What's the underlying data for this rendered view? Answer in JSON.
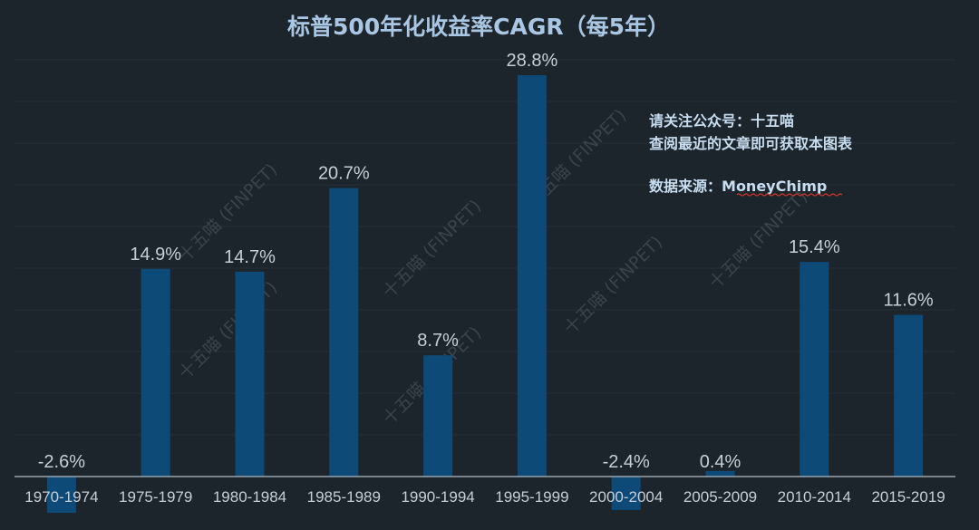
{
  "chart_data": {
    "type": "bar",
    "title": "标普500年化收益率CAGR（每5年）",
    "categories": [
      "1970-1974",
      "1975-1979",
      "1980-1984",
      "1985-1989",
      "1990-1994",
      "1995-1999",
      "2000-2004",
      "2005-2009",
      "2010-2014",
      "2015-2019"
    ],
    "values": [
      -2.6,
      14.9,
      14.7,
      20.7,
      8.7,
      28.8,
      -2.4,
      0.4,
      15.4,
      11.6
    ],
    "data_labels": [
      "-2.6%",
      "14.9%",
      "14.7%",
      "20.7%",
      "8.7%",
      "28.8%",
      "-2.4%",
      "0.4%",
      "15.4%",
      "11.6%"
    ],
    "xlabel": "",
    "ylabel": "",
    "ylim": [
      -3.5,
      29.5
    ],
    "grid": true,
    "legend": "none"
  },
  "annotation": {
    "line1": "请关注公众号：十五喵",
    "line2": "查阅最近的文章即可获取本图表",
    "source_prefix": "数据来源：",
    "source_name": "MoneyChimp"
  },
  "watermark": "十五喵 (FINPET)",
  "colors": {
    "background": "#1c252c",
    "bar": "#0e4a78",
    "title": "#a9c6e2",
    "tick_label": "#c6ced6",
    "data_label": "#c6ced6",
    "note": "#c8ddf0",
    "grid": "#263038",
    "axis": "#9aa4ad",
    "watermark": "#39434b",
    "underline": "#e0352b"
  }
}
